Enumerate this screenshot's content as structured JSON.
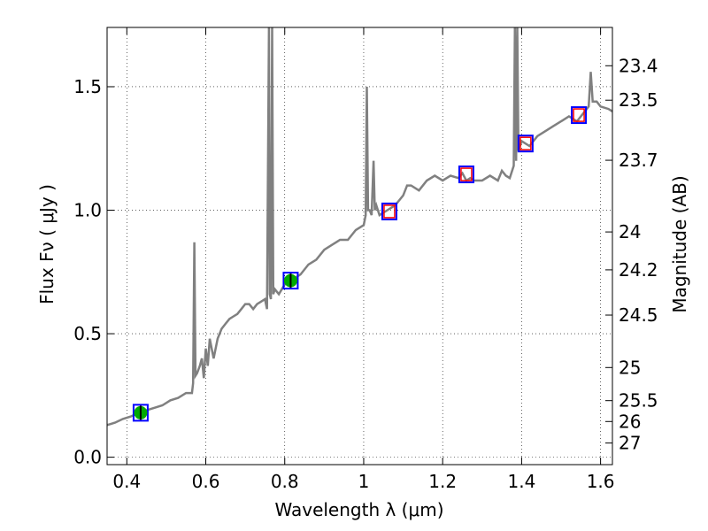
{
  "chart_data": {
    "type": "line",
    "xlabel": "Wavelength  λ (μm)",
    "ylabel": "Flux  Fν  ( μJy )",
    "y2label": "Magnitude (AB)",
    "xlim": [
      0.35,
      1.63
    ],
    "ylim": [
      -0.03,
      1.74
    ],
    "x_ticks": [
      0.4,
      0.6,
      0.8,
      1.0,
      1.2,
      1.4,
      1.6
    ],
    "x_tick_labels": [
      "0.4",
      "0.6",
      "0.8",
      "1",
      "1.2",
      "1.4",
      "1.6"
    ],
    "y_ticks": [
      0.0,
      0.5,
      1.0,
      1.5
    ],
    "y_tick_labels": [
      "0.0",
      "0.5",
      "1.0",
      "1.5"
    ],
    "mag_ticks": [
      23.4,
      23.5,
      23.7,
      24,
      24.2,
      24.5,
      25,
      25.5,
      26,
      27
    ],
    "mag_tick_labels": [
      "23.4",
      "23.5",
      "23.7",
      "24",
      "24.2",
      "24.5",
      "25",
      "25.5",
      "26",
      "27"
    ],
    "grid": true,
    "colors": {
      "spectrum": "#808080",
      "box": "#0000ff",
      "model_point": "#ff0000",
      "observed_point": "#00aa00",
      "error_bar": "#000000"
    },
    "spectrum": {
      "x": [
        0.35,
        0.37,
        0.39,
        0.41,
        0.43,
        0.45,
        0.47,
        0.49,
        0.51,
        0.53,
        0.55,
        0.565,
        0.568,
        0.571,
        0.574,
        0.578,
        0.585,
        0.59,
        0.595,
        0.6,
        0.605,
        0.61,
        0.62,
        0.63,
        0.64,
        0.65,
        0.66,
        0.67,
        0.68,
        0.69,
        0.7,
        0.71,
        0.72,
        0.73,
        0.74,
        0.75,
        0.755,
        0.76,
        0.762,
        0.765,
        0.768,
        0.771,
        0.775,
        0.785,
        0.8,
        0.82,
        0.84,
        0.86,
        0.88,
        0.9,
        0.92,
        0.94,
        0.96,
        0.98,
        1.0,
        1.005,
        1.008,
        1.011,
        1.015,
        1.02,
        1.025,
        1.028,
        1.032,
        1.04,
        1.06,
        1.08,
        1.1,
        1.11,
        1.12,
        1.14,
        1.16,
        1.18,
        1.2,
        1.22,
        1.24,
        1.25,
        1.26,
        1.27,
        1.28,
        1.3,
        1.32,
        1.34,
        1.35,
        1.36,
        1.37,
        1.38,
        1.383,
        1.386,
        1.389,
        1.392,
        1.4,
        1.42,
        1.44,
        1.46,
        1.48,
        1.5,
        1.52,
        1.54,
        1.56,
        1.57,
        1.575,
        1.58,
        1.59,
        1.6,
        1.62,
        1.63
      ],
      "y": [
        0.13,
        0.14,
        0.155,
        0.165,
        0.18,
        0.19,
        0.2,
        0.21,
        0.23,
        0.24,
        0.26,
        0.26,
        0.3,
        0.87,
        0.33,
        0.34,
        0.37,
        0.4,
        0.32,
        0.44,
        0.37,
        0.48,
        0.4,
        0.48,
        0.52,
        0.54,
        0.56,
        0.57,
        0.58,
        0.6,
        0.62,
        0.62,
        0.6,
        0.62,
        0.63,
        0.64,
        0.6,
        1.74,
        0.66,
        0.64,
        1.74,
        0.66,
        0.68,
        0.66,
        0.7,
        0.72,
        0.74,
        0.78,
        0.8,
        0.84,
        0.86,
        0.88,
        0.88,
        0.92,
        0.94,
        0.98,
        1.5,
        1.0,
        1.0,
        0.98,
        1.2,
        1.0,
        1.02,
        0.98,
        1.0,
        1.02,
        1.06,
        1.1,
        1.1,
        1.08,
        1.12,
        1.14,
        1.12,
        1.14,
        1.13,
        1.15,
        1.12,
        1.13,
        1.12,
        1.12,
        1.14,
        1.12,
        1.16,
        1.14,
        1.13,
        1.18,
        1.74,
        1.2,
        1.74,
        1.24,
        1.28,
        1.26,
        1.3,
        1.32,
        1.34,
        1.36,
        1.38,
        1.36,
        1.4,
        1.42,
        1.56,
        1.44,
        1.44,
        1.42,
        1.41,
        1.4
      ]
    },
    "photometry": [
      {
        "x": 0.435,
        "y": 0.18,
        "observed": true
      },
      {
        "x": 0.815,
        "y": 0.715,
        "observed": true
      },
      {
        "x": 1.065,
        "y": 0.995,
        "observed": false
      },
      {
        "x": 1.26,
        "y": 1.145,
        "observed": false
      },
      {
        "x": 1.41,
        "y": 1.27,
        "observed": false
      },
      {
        "x": 1.545,
        "y": 1.385,
        "observed": false
      }
    ]
  }
}
